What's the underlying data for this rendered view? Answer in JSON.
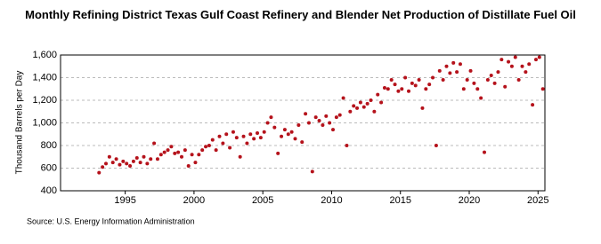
{
  "chart_data": {
    "type": "scatter",
    "title": "Monthly Refining District Texas Gulf Coast Refinery and Blender Net Production of Distillate Fuel Oil",
    "y_label": "Thousand Barrels per Day",
    "source": "Source: U.S. Energy Information Administration",
    "xlim": [
      1990.3,
      2025.5
    ],
    "xticks": [
      1995,
      2000,
      2005,
      2010,
      2015,
      2020,
      2025
    ],
    "ylim": [
      400,
      1600
    ],
    "yticks": [
      {
        "value": 400,
        "label": "400"
      },
      {
        "value": 600,
        "label": "600"
      },
      {
        "value": 800,
        "label": "800"
      },
      {
        "value": 1000,
        "label": "1,000"
      },
      {
        "value": 1200,
        "label": "1,200"
      },
      {
        "value": 1400,
        "label": "1,400"
      },
      {
        "value": 1600,
        "label": "1,600"
      }
    ],
    "grid": true,
    "color": "#b5121b",
    "x": [
      1993.1,
      1993.35,
      1993.6,
      1993.85,
      1994.1,
      1994.35,
      1994.6,
      1994.85,
      1995.1,
      1995.35,
      1995.6,
      1995.85,
      1996.1,
      1996.35,
      1996.6,
      1996.85,
      1997.1,
      1997.35,
      1997.6,
      1997.85,
      1998.1,
      1998.35,
      1998.6,
      1998.85,
      1999.1,
      1999.35,
      1999.6,
      1999.85,
      2000.1,
      2000.35,
      2000.6,
      2000.85,
      2001.1,
      2001.35,
      2001.6,
      2001.85,
      2002.1,
      2002.35,
      2002.6,
      2002.85,
      2003.1,
      2003.35,
      2003.6,
      2003.85,
      2004.1,
      2004.35,
      2004.6,
      2004.85,
      2005.1,
      2005.35,
      2005.6,
      2005.85,
      2006.1,
      2006.35,
      2006.6,
      2006.85,
      2007.1,
      2007.35,
      2007.6,
      2007.85,
      2008.1,
      2008.35,
      2008.6,
      2008.85,
      2009.1,
      2009.35,
      2009.6,
      2009.85,
      2010.1,
      2010.35,
      2010.6,
      2010.85,
      2011.1,
      2011.35,
      2011.6,
      2011.85,
      2012.1,
      2012.35,
      2012.6,
      2012.85,
      2013.1,
      2013.35,
      2013.6,
      2013.85,
      2014.1,
      2014.35,
      2014.6,
      2014.85,
      2015.1,
      2015.35,
      2015.6,
      2015.85,
      2016.1,
      2016.35,
      2016.6,
      2016.85,
      2017.1,
      2017.35,
      2017.6,
      2017.85,
      2018.1,
      2018.35,
      2018.6,
      2018.85,
      2019.1,
      2019.35,
      2019.6,
      2019.85,
      2020.1,
      2020.35,
      2020.6,
      2020.85,
      2021.1,
      2021.35,
      2021.6,
      2021.85,
      2022.1,
      2022.35,
      2022.6,
      2022.85,
      2023.1,
      2023.35,
      2023.6,
      2023.85,
      2024.1,
      2024.35,
      2024.6,
      2024.85,
      2025.1,
      2025.35
    ],
    "values": [
      560,
      610,
      640,
      700,
      650,
      680,
      630,
      660,
      640,
      620,
      660,
      690,
      650,
      700,
      640,
      680,
      820,
      680,
      720,
      740,
      760,
      790,
      730,
      740,
      700,
      760,
      620,
      720,
      650,
      720,
      760,
      790,
      800,
      850,
      760,
      880,
      820,
      900,
      780,
      920,
      870,
      700,
      880,
      820,
      900,
      860,
      910,
      870,
      920,
      1000,
      1050,
      960,
      730,
      880,
      940,
      900,
      920,
      860,
      980,
      830,
      1080,
      1000,
      570,
      1050,
      1020,
      980,
      1060,
      1000,
      940,
      1050,
      1070,
      1220,
      800,
      1100,
      1150,
      1130,
      1180,
      1140,
      1170,
      1200,
      1100,
      1250,
      1180,
      1310,
      1300,
      1380,
      1340,
      1280,
      1300,
      1400,
      1280,
      1350,
      1330,
      1380,
      1130,
      1300,
      1340,
      1400,
      800,
      1460,
      1380,
      1500,
      1440,
      1530,
      1450,
      1520,
      1300,
      1380,
      1460,
      1350,
      1300,
      1220,
      740,
      1380,
      1420,
      1350,
      1450,
      1560,
      1320,
      1540,
      1500,
      1580,
      1380,
      1500,
      1450,
      1520,
      1160,
      1560,
      1580,
      1300
    ]
  }
}
